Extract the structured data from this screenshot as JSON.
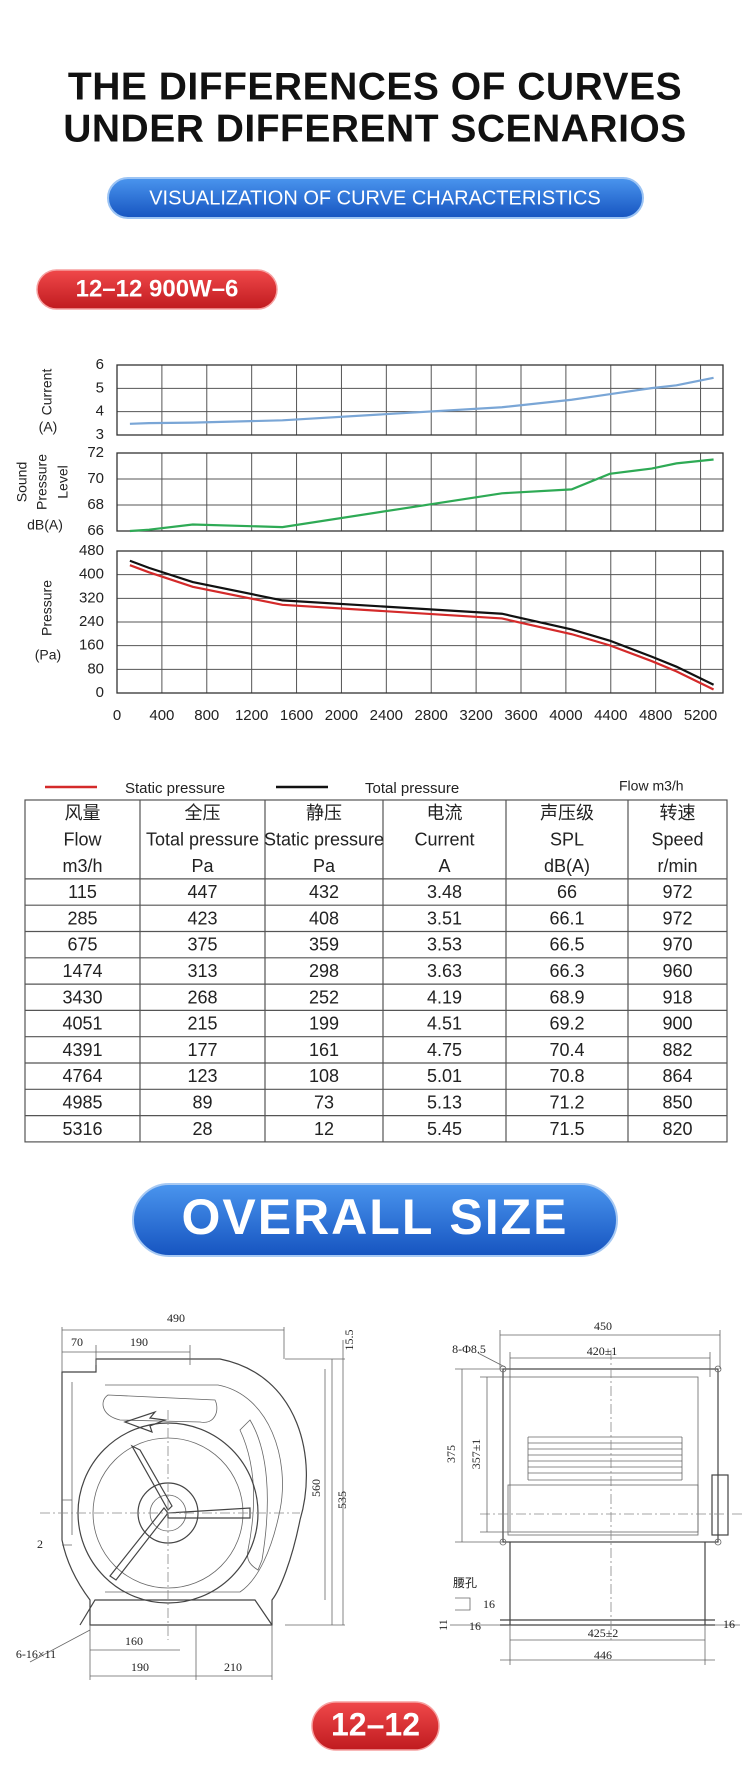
{
  "header": {
    "title_lines": [
      "THE DIFFERENCES OF CURVES",
      "UNDER DIFFERENT SCENARIOS"
    ],
    "subtitle": "VISUALIZATION OF CURVE CHARACTERISTICS",
    "model": "12–12 900W–6"
  },
  "chart_data": [
    {
      "type": "line",
      "ylabel_lines": [
        "Current",
        "(A)"
      ],
      "x": [
        115,
        285,
        675,
        1474,
        3430,
        4051,
        4391,
        4764,
        4985,
        5316
      ],
      "series": [
        {
          "color": "#7aa6d6",
          "values": [
            3.48,
            3.51,
            3.53,
            3.63,
            4.19,
            4.51,
            4.75,
            5.01,
            5.13,
            5.45
          ]
        }
      ],
      "xlim": [
        0,
        5400
      ],
      "xticks": [
        0,
        400,
        800,
        1200,
        1600,
        2000,
        2400,
        2800,
        3200,
        3600,
        4000,
        4400,
        4800,
        5200
      ],
      "show_xtick_labels": false,
      "ylim": [
        3,
        6
      ],
      "yticks": [
        3,
        4,
        5,
        6
      ],
      "grid": true
    },
    {
      "type": "line",
      "ylabel_lines": [
        "Sound",
        "Pressure",
        "Level",
        "dB(A)"
      ],
      "x": [
        115,
        285,
        675,
        1474,
        3430,
        4051,
        4391,
        4764,
        4985,
        5316
      ],
      "series": [
        {
          "color": "#2eaa55",
          "values": [
            66,
            66.1,
            66.5,
            66.3,
            68.9,
            69.2,
            70.4,
            70.8,
            71.2,
            71.5
          ]
        }
      ],
      "xlim": [
        0,
        5400
      ],
      "xticks": [
        0,
        400,
        800,
        1200,
        1600,
        2000,
        2400,
        2800,
        3200,
        3600,
        4000,
        4400,
        4800,
        5200
      ],
      "show_xtick_labels": false,
      "ylim": [
        66,
        72
      ],
      "yticks": [
        66,
        68,
        70,
        72
      ],
      "grid": true
    },
    {
      "type": "line",
      "ylabel_lines": [
        "Pressure",
        "(Pa)"
      ],
      "xlabel": "Flow m3/h",
      "x": [
        115,
        285,
        675,
        1474,
        3430,
        4051,
        4391,
        4764,
        4985,
        5316
      ],
      "series": [
        {
          "name": "Static pressure",
          "color": "#d42a2a",
          "values": [
            432,
            408,
            359,
            298,
            252,
            199,
            161,
            108,
            73,
            12
          ]
        },
        {
          "name": "Total pressure",
          "color": "#111111",
          "values": [
            447,
            423,
            375,
            313,
            268,
            215,
            177,
            123,
            89,
            28
          ]
        }
      ],
      "xlim": [
        0,
        5400
      ],
      "xticks": [
        0,
        400,
        800,
        1200,
        1600,
        2000,
        2400,
        2800,
        3200,
        3600,
        4000,
        4400,
        4800,
        5200
      ],
      "show_xtick_labels": true,
      "ylim": [
        0,
        480
      ],
      "yticks": [
        0,
        80,
        160,
        240,
        320,
        400,
        480
      ],
      "grid": true
    }
  ],
  "table": {
    "header": [
      [
        "风量",
        "全压",
        "静压",
        "电流",
        "声压级",
        "转速"
      ],
      [
        "Flow",
        "Total pressure",
        "Static pressure",
        "Current",
        "SPL",
        "Speed"
      ],
      [
        "m3/h",
        "Pa",
        "Pa",
        "A",
        "dB(A)",
        "r/min"
      ]
    ],
    "rows": [
      [
        "115",
        "447",
        "432",
        "3.48",
        "66",
        "972"
      ],
      [
        "285",
        "423",
        "408",
        "3.51",
        "66.1",
        "972"
      ],
      [
        "675",
        "375",
        "359",
        "3.53",
        "66.5",
        "970"
      ],
      [
        "1474",
        "313",
        "298",
        "3.63",
        "66.3",
        "960"
      ],
      [
        "3430",
        "268",
        "252",
        "4.19",
        "68.9",
        "918"
      ],
      [
        "4051",
        "215",
        "199",
        "4.51",
        "69.2",
        "900"
      ],
      [
        "4391",
        "177",
        "161",
        "4.75",
        "70.4",
        "882"
      ],
      [
        "4764",
        "123",
        "108",
        "5.01",
        "70.8",
        "864"
      ],
      [
        "4985",
        "89",
        "73",
        "5.13",
        "71.2",
        "850"
      ],
      [
        "5316",
        "28",
        "12",
        "5.45",
        "71.5",
        "820"
      ]
    ]
  },
  "size_section": {
    "title": "OVERALL SIZE",
    "left_dims": [
      "490",
      "70",
      "190",
      "15.5",
      "560",
      "535",
      "2",
      "160",
      "190",
      "210",
      "6-16×11"
    ],
    "right_dims": [
      "450",
      "8-Φ8.5",
      "420±1",
      "375",
      "357±1",
      "腰孔",
      "16",
      "16",
      "11",
      "425±2",
      "446",
      "16"
    ]
  },
  "footer_badge": "12–12"
}
